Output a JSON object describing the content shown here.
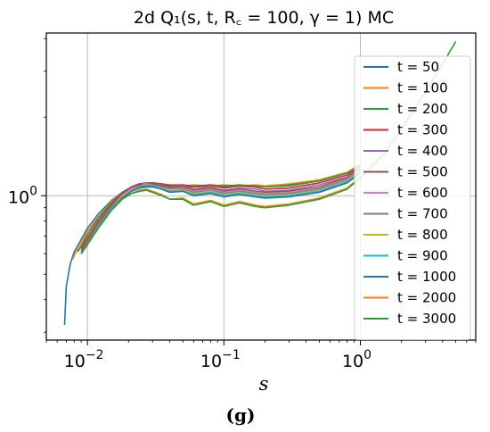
{
  "chart_data": {
    "type": "line",
    "title": "2d Q₁(s, t, R꜀ = 100, γ = 1) MC",
    "xlabel": "s",
    "ylabel": "",
    "xscale": "log",
    "yscale": "log",
    "xlim": [
      0.005,
      7
    ],
    "ylim": [
      0.28,
      4.2
    ],
    "grid": true,
    "legend_position": "right",
    "x_ticks": [
      {
        "value": 0.01,
        "base": "10",
        "exp": "−2"
      },
      {
        "value": 0.1,
        "base": "10",
        "exp": "−1"
      },
      {
        "value": 1,
        "base": "10",
        "exp": "0"
      }
    ],
    "y_ticks": [
      {
        "value": 1,
        "base": "10",
        "exp": "0"
      }
    ],
    "caption": "(g)",
    "series": [
      {
        "name": "t = 50",
        "color": "#1f77b4",
        "x": [
          0.0068,
          0.007,
          0.0075,
          0.008,
          0.009,
          0.01,
          0.012,
          0.015,
          0.018,
          0.021,
          0.024,
          0.027,
          0.03,
          0.035,
          0.04,
          0.05,
          0.06,
          0.08,
          0.1,
          0.13,
          0.17,
          0.2,
          0.3,
          0.5,
          0.8,
          1.0
        ],
        "y": [
          0.32,
          0.45,
          0.55,
          0.61,
          0.68,
          0.75,
          0.85,
          0.96,
          1.03,
          1.06,
          1.07,
          1.08,
          1.08,
          1.09,
          1.08,
          1.09,
          1.08,
          1.09,
          1.08,
          1.09,
          1.08,
          1.09,
          1.1,
          1.14,
          1.22,
          1.3
        ]
      },
      {
        "name": "t = 100",
        "color": "#ff7f0e",
        "x": [
          0.0078,
          0.008,
          0.009,
          0.01,
          0.012,
          0.015,
          0.018,
          0.021,
          0.024,
          0.027,
          0.03,
          0.035,
          0.04,
          0.05,
          0.06,
          0.08,
          0.1,
          0.13,
          0.17,
          0.2,
          0.3,
          0.5,
          0.8,
          1.0
        ],
        "y": [
          0.57,
          0.59,
          0.66,
          0.73,
          0.83,
          0.95,
          1.03,
          1.07,
          1.09,
          1.1,
          1.11,
          1.1,
          1.1,
          1.09,
          1.1,
          1.09,
          1.1,
          1.09,
          1.1,
          1.09,
          1.11,
          1.15,
          1.23,
          1.32
        ]
      },
      {
        "name": "t = 200",
        "color": "#2ca02c",
        "x": [
          0.0085,
          0.009,
          0.01,
          0.012,
          0.015,
          0.018,
          0.021,
          0.024,
          0.027,
          0.03,
          0.035,
          0.04,
          0.05,
          0.06,
          0.08,
          0.1,
          0.13,
          0.17,
          0.2,
          0.3,
          0.5,
          0.8,
          1.0
        ],
        "y": [
          0.61,
          0.64,
          0.71,
          0.82,
          0.94,
          1.03,
          1.08,
          1.11,
          1.12,
          1.12,
          1.11,
          1.1,
          1.1,
          1.09,
          1.1,
          1.09,
          1.1,
          1.09,
          1.08,
          1.09,
          1.14,
          1.22,
          1.31
        ]
      },
      {
        "name": "t = 300",
        "color": "#d62728",
        "x": [
          0.009,
          0.01,
          0.012,
          0.015,
          0.018,
          0.021,
          0.024,
          0.027,
          0.03,
          0.035,
          0.04,
          0.05,
          0.06,
          0.08,
          0.1,
          0.13,
          0.17,
          0.2,
          0.3,
          0.5,
          0.8,
          1.0
        ],
        "y": [
          0.63,
          0.69,
          0.8,
          0.93,
          1.02,
          1.08,
          1.11,
          1.12,
          1.12,
          1.11,
          1.09,
          1.1,
          1.08,
          1.1,
          1.07,
          1.09,
          1.08,
          1.06,
          1.07,
          1.12,
          1.2,
          1.29
        ]
      },
      {
        "name": "t = 400",
        "color": "#9467bd",
        "x": [
          0.009,
          0.01,
          0.012,
          0.015,
          0.018,
          0.021,
          0.024,
          0.027,
          0.03,
          0.035,
          0.04,
          0.05,
          0.06,
          0.08,
          0.1,
          0.13,
          0.17,
          0.2,
          0.3,
          0.5,
          0.8,
          1.0
        ],
        "y": [
          0.62,
          0.68,
          0.79,
          0.92,
          1.01,
          1.07,
          1.1,
          1.12,
          1.11,
          1.1,
          1.08,
          1.09,
          1.06,
          1.08,
          1.05,
          1.07,
          1.06,
          1.04,
          1.05,
          1.1,
          1.18,
          1.28
        ]
      },
      {
        "name": "t = 500",
        "color": "#8c564b",
        "x": [
          0.009,
          0.01,
          0.012,
          0.015,
          0.018,
          0.021,
          0.024,
          0.027,
          0.03,
          0.035,
          0.04,
          0.05,
          0.06,
          0.08,
          0.1,
          0.13,
          0.17,
          0.2,
          0.3,
          0.5,
          0.8,
          1.0
        ],
        "y": [
          0.61,
          0.67,
          0.78,
          0.91,
          1.0,
          1.06,
          1.1,
          1.11,
          1.11,
          1.09,
          1.07,
          1.08,
          1.05,
          1.07,
          1.04,
          1.06,
          1.04,
          1.03,
          1.04,
          1.08,
          1.17,
          1.27
        ]
      },
      {
        "name": "t = 600",
        "color": "#e377c2",
        "x": [
          0.009,
          0.01,
          0.012,
          0.015,
          0.018,
          0.021,
          0.024,
          0.027,
          0.03,
          0.035,
          0.04,
          0.05,
          0.06,
          0.08,
          0.1,
          0.13,
          0.17,
          0.2,
          0.3,
          0.5,
          0.8,
          1.0
        ],
        "y": [
          0.6,
          0.66,
          0.77,
          0.9,
          1.0,
          1.06,
          1.09,
          1.11,
          1.1,
          1.08,
          1.06,
          1.07,
          1.04,
          1.06,
          1.03,
          1.05,
          1.03,
          1.02,
          1.03,
          1.07,
          1.16,
          1.26
        ]
      },
      {
        "name": "t = 700",
        "color": "#7f7f7f",
        "x": [
          0.009,
          0.01,
          0.012,
          0.015,
          0.018,
          0.021,
          0.024,
          0.027,
          0.03,
          0.035,
          0.04,
          0.05,
          0.06,
          0.08,
          0.1,
          0.13,
          0.17,
          0.2,
          0.3,
          0.5,
          0.8,
          1.0
        ],
        "y": [
          0.6,
          0.66,
          0.77,
          0.9,
          0.99,
          1.05,
          1.09,
          1.1,
          1.1,
          1.08,
          1.05,
          1.06,
          1.03,
          1.05,
          1.02,
          1.04,
          1.02,
          1.01,
          1.02,
          1.06,
          1.15,
          1.25
        ]
      },
      {
        "name": "t = 800",
        "color": "#bcbd22",
        "x": [
          0.009,
          0.01,
          0.012,
          0.015,
          0.018,
          0.021,
          0.024,
          0.027,
          0.03,
          0.035,
          0.04,
          0.05,
          0.06,
          0.08,
          0.1,
          0.13,
          0.17,
          0.2,
          0.3,
          0.5,
          0.8,
          1.0
        ],
        "y": [
          0.6,
          0.65,
          0.76,
          0.89,
          0.99,
          1.05,
          1.08,
          1.1,
          1.09,
          1.07,
          1.05,
          1.05,
          1.02,
          1.04,
          1.01,
          1.03,
          1.01,
          1.0,
          1.01,
          1.05,
          1.14,
          1.24
        ]
      },
      {
        "name": "t = 900",
        "color": "#17becf",
        "x": [
          0.009,
          0.01,
          0.012,
          0.015,
          0.018,
          0.021,
          0.024,
          0.027,
          0.03,
          0.035,
          0.04,
          0.05,
          0.06,
          0.08,
          0.1,
          0.13,
          0.17,
          0.2,
          0.3,
          0.5,
          0.8,
          1.0
        ],
        "y": [
          0.6,
          0.65,
          0.76,
          0.89,
          0.98,
          1.04,
          1.08,
          1.09,
          1.09,
          1.06,
          1.04,
          1.04,
          1.01,
          1.03,
          1.0,
          1.02,
          1.0,
          0.99,
          1.0,
          1.04,
          1.13,
          1.23
        ]
      },
      {
        "name": "t = 1000",
        "color": "#1f77b4",
        "x": [
          0.009,
          0.01,
          0.012,
          0.015,
          0.018,
          0.021,
          0.024,
          0.027,
          0.03,
          0.035,
          0.04,
          0.05,
          0.06,
          0.08,
          0.1,
          0.13,
          0.17,
          0.2,
          0.3,
          0.5,
          0.8,
          1.0
        ],
        "y": [
          0.6,
          0.65,
          0.75,
          0.88,
          0.98,
          1.04,
          1.07,
          1.09,
          1.08,
          1.06,
          1.03,
          1.04,
          1.0,
          1.02,
          0.99,
          1.01,
          0.99,
          0.98,
          0.99,
          1.03,
          1.12,
          1.22
        ]
      },
      {
        "name": "t = 2000",
        "color": "#ff7f0e",
        "x": [
          0.009,
          0.01,
          0.012,
          0.015,
          0.018,
          0.021,
          0.024,
          0.027,
          0.03,
          0.035,
          0.04,
          0.05,
          0.06,
          0.08,
          0.1,
          0.13,
          0.17,
          0.2,
          0.3,
          0.5,
          0.8,
          1.0
        ],
        "y": [
          0.6,
          0.65,
          0.75,
          0.88,
          0.97,
          1.02,
          1.05,
          1.06,
          1.04,
          1.01,
          0.97,
          0.98,
          0.93,
          0.96,
          0.92,
          0.95,
          0.92,
          0.91,
          0.93,
          0.98,
          1.07,
          1.18
        ]
      },
      {
        "name": "t = 3000",
        "color": "#2ca02c",
        "x": [
          0.009,
          0.01,
          0.012,
          0.015,
          0.018,
          0.021,
          0.024,
          0.027,
          0.03,
          0.035,
          0.04,
          0.05,
          0.06,
          0.08,
          0.1,
          0.13,
          0.17,
          0.2,
          0.3,
          0.5,
          0.8,
          1.0,
          1.5,
          2.0,
          3.0,
          4.0,
          5.0
        ],
        "y": [
          0.6,
          0.65,
          0.75,
          0.88,
          0.97,
          1.02,
          1.04,
          1.05,
          1.03,
          1.0,
          0.97,
          0.97,
          0.92,
          0.95,
          0.91,
          0.94,
          0.91,
          0.9,
          0.92,
          0.97,
          1.06,
          1.17,
          1.45,
          1.8,
          2.5,
          3.2,
          3.9
        ]
      }
    ]
  }
}
